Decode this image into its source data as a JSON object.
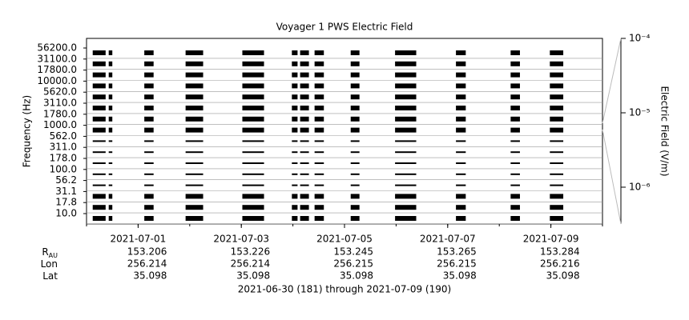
{
  "chart_data": {
    "type": "coverage",
    "title": "Voyager 1 PWS Electric Field",
    "y_label": "Frequency (Hz)",
    "y2_label": "Electric Field (V/m)",
    "channels": [
      "56200.0",
      "31100.0",
      "17800.0",
      "10000.0",
      "5620.0",
      "3110.0",
      "1780.0",
      "1000.0",
      "562.0",
      "311.0",
      "178.0",
      "100.0",
      "56.2",
      "31.1",
      "17.8",
      "10.0"
    ],
    "xlim": [
      0,
      10
    ],
    "xticks": [
      {
        "value": 1,
        "label": "2021-07-01"
      },
      {
        "value": 3,
        "label": "2021-07-03"
      },
      {
        "value": 5,
        "label": "2021-07-05"
      },
      {
        "value": 7,
        "label": "2021-07-07"
      },
      {
        "value": 9,
        "label": "2021-07-09"
      }
    ],
    "coverage": [
      [
        0.12,
        0.37
      ],
      [
        0.43,
        0.5
      ],
      [
        1.12,
        1.3
      ],
      [
        1.92,
        2.26
      ],
      [
        3.02,
        3.44
      ],
      [
        3.98,
        4.09
      ],
      [
        4.14,
        4.31
      ],
      [
        4.42,
        4.6
      ],
      [
        5.12,
        5.29
      ],
      [
        5.98,
        6.39
      ],
      [
        7.16,
        7.35
      ],
      [
        8.22,
        8.4
      ],
      [
        8.98,
        9.24
      ]
    ],
    "color": "#000000",
    "log_y2": true,
    "y2lim": [
      3.2e-07,
      0.0001
    ],
    "y2ticks": [
      {
        "value": 0.0001,
        "label": "10⁻⁴"
      },
      {
        "value": 1e-05,
        "label": "10⁻⁵"
      },
      {
        "value": 1e-06,
        "label": "10⁻⁶"
      }
    ],
    "ephemeris": [
      {
        "label": "R",
        "sub": "AU",
        "values": [
          153.206,
          153.226,
          153.245,
          153.265,
          153.284
        ]
      },
      {
        "label": "Lon",
        "values": [
          256.214,
          256.214,
          256.215,
          256.215,
          256.216
        ]
      },
      {
        "label": "Lat",
        "values": [
          35.098,
          35.098,
          35.098,
          35.098,
          35.098
        ]
      }
    ],
    "footer": "2021-06-30 (181) through 2021-07-09 (190)"
  }
}
